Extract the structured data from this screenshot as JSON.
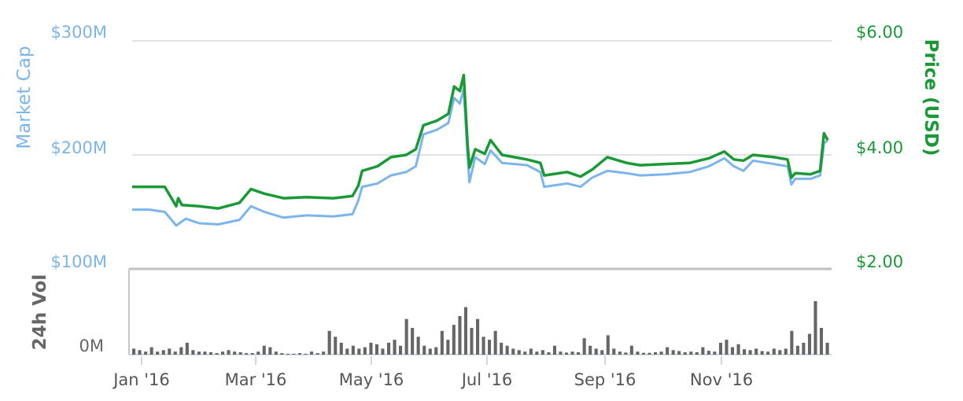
{
  "chart_data": {
    "type": "line",
    "left_axis": {
      "title": "Market Cap",
      "ticks": [
        "$100M",
        "$200M",
        "$300M"
      ],
      "range": [
        100,
        300
      ],
      "unit": "M USD"
    },
    "right_axis": {
      "title": "Price (USD)",
      "ticks": [
        "$2.00",
        "$4.00",
        "$6.00"
      ],
      "range": [
        2,
        6
      ]
    },
    "volume_axis": {
      "title": "24h Vol",
      "ticks": [
        "0M"
      ]
    },
    "x_axis": {
      "ticks": [
        "Jan '16",
        "Mar '16",
        "May '16",
        "Jul '16",
        "Sep '16",
        "Nov '16"
      ],
      "range": [
        "2016-01-01",
        "2016-12-31"
      ]
    },
    "grid": true,
    "colors": {
      "market_cap": "#7cb5ec",
      "price": "#1a9937",
      "volume": "#666666",
      "grid": "#d8d8d8",
      "volume_panel": "#c0c0c0"
    },
    "series": [
      {
        "name": "Market Cap",
        "color": "#7cb5ec",
        "points": [
          [
            "2016-01-01",
            152
          ],
          [
            "2016-01-10",
            152
          ],
          [
            "2016-01-18",
            150
          ],
          [
            "2016-01-24",
            138
          ],
          [
            "2016-01-29",
            144
          ],
          [
            "2016-02-05",
            140
          ],
          [
            "2016-02-15",
            139
          ],
          [
            "2016-02-26",
            143
          ],
          [
            "2016-03-03",
            155
          ],
          [
            "2016-03-10",
            150
          ],
          [
            "2016-03-20",
            145
          ],
          [
            "2016-04-01",
            147
          ],
          [
            "2016-04-15",
            146
          ],
          [
            "2016-04-25",
            148
          ],
          [
            "2016-04-28",
            160
          ],
          [
            "2016-04-30",
            172
          ],
          [
            "2016-05-08",
            175
          ],
          [
            "2016-05-15",
            182
          ],
          [
            "2016-05-23",
            185
          ],
          [
            "2016-05-28",
            190
          ],
          [
            "2016-06-01",
            218
          ],
          [
            "2016-06-08",
            222
          ],
          [
            "2016-06-14",
            228
          ],
          [
            "2016-06-17",
            250
          ],
          [
            "2016-06-20",
            245
          ],
          [
            "2016-06-22",
            258
          ],
          [
            "2016-06-24",
            200
          ],
          [
            "2016-06-25",
            176
          ],
          [
            "2016-06-28",
            198
          ],
          [
            "2016-07-03",
            192
          ],
          [
            "2016-07-06",
            204
          ],
          [
            "2016-07-12",
            193
          ],
          [
            "2016-07-25",
            191
          ],
          [
            "2016-08-01",
            185
          ],
          [
            "2016-08-03",
            172
          ],
          [
            "2016-08-15",
            175
          ],
          [
            "2016-08-22",
            172
          ],
          [
            "2016-08-28",
            180
          ],
          [
            "2016-09-05",
            186
          ],
          [
            "2016-09-15",
            184
          ],
          [
            "2016-09-22",
            182
          ],
          [
            "2016-10-05",
            183
          ],
          [
            "2016-10-18",
            185
          ],
          [
            "2016-10-28",
            190
          ],
          [
            "2016-11-05",
            197
          ],
          [
            "2016-11-10",
            190
          ],
          [
            "2016-11-15",
            186
          ],
          [
            "2016-11-20",
            195
          ],
          [
            "2016-12-01",
            192
          ],
          [
            "2016-12-08",
            190
          ],
          [
            "2016-12-10",
            174
          ],
          [
            "2016-12-12",
            179
          ],
          [
            "2016-12-20",
            179
          ],
          [
            "2016-12-25",
            182
          ],
          [
            "2016-12-27",
            210
          ],
          [
            "2016-12-29",
            213
          ]
        ]
      },
      {
        "name": "Price (USD)",
        "color": "#1a9937",
        "points": [
          [
            "2016-01-01",
            3.44
          ],
          [
            "2016-01-10",
            3.44
          ],
          [
            "2016-01-18",
            3.44
          ],
          [
            "2016-01-24",
            3.1
          ],
          [
            "2016-01-25",
            3.24
          ],
          [
            "2016-01-27",
            3.12
          ],
          [
            "2016-02-05",
            3.1
          ],
          [
            "2016-02-15",
            3.06
          ],
          [
            "2016-02-26",
            3.16
          ],
          [
            "2016-03-03",
            3.4
          ],
          [
            "2016-03-10",
            3.32
          ],
          [
            "2016-03-20",
            3.24
          ],
          [
            "2016-04-01",
            3.26
          ],
          [
            "2016-04-15",
            3.24
          ],
          [
            "2016-04-25",
            3.28
          ],
          [
            "2016-04-28",
            3.46
          ],
          [
            "2016-04-30",
            3.72
          ],
          [
            "2016-05-08",
            3.8
          ],
          [
            "2016-05-15",
            3.96
          ],
          [
            "2016-05-23",
            4.0
          ],
          [
            "2016-05-28",
            4.1
          ],
          [
            "2016-06-01",
            4.52
          ],
          [
            "2016-06-08",
            4.6
          ],
          [
            "2016-06-14",
            4.72
          ],
          [
            "2016-06-17",
            5.2
          ],
          [
            "2016-06-20",
            5.12
          ],
          [
            "2016-06-22",
            5.4
          ],
          [
            "2016-06-24",
            4.2
          ],
          [
            "2016-06-25",
            3.78
          ],
          [
            "2016-06-28",
            4.1
          ],
          [
            "2016-07-03",
            4.02
          ],
          [
            "2016-07-06",
            4.26
          ],
          [
            "2016-07-12",
            4.0
          ],
          [
            "2016-07-25",
            3.92
          ],
          [
            "2016-08-01",
            3.86
          ],
          [
            "2016-08-03",
            3.64
          ],
          [
            "2016-08-15",
            3.7
          ],
          [
            "2016-08-22",
            3.62
          ],
          [
            "2016-08-28",
            3.74
          ],
          [
            "2016-09-05",
            3.96
          ],
          [
            "2016-09-15",
            3.86
          ],
          [
            "2016-09-22",
            3.82
          ],
          [
            "2016-10-05",
            3.84
          ],
          [
            "2016-10-18",
            3.86
          ],
          [
            "2016-10-28",
            3.94
          ],
          [
            "2016-11-05",
            4.06
          ],
          [
            "2016-11-10",
            3.92
          ],
          [
            "2016-11-15",
            3.9
          ],
          [
            "2016-11-20",
            4.0
          ],
          [
            "2016-12-01",
            3.96
          ],
          [
            "2016-12-08",
            3.92
          ],
          [
            "2016-12-10",
            3.6
          ],
          [
            "2016-12-12",
            3.68
          ],
          [
            "2016-12-20",
            3.66
          ],
          [
            "2016-12-25",
            3.72
          ],
          [
            "2016-12-27",
            4.38
          ],
          [
            "2016-12-29",
            4.26
          ]
        ]
      },
      {
        "name": "24h Vol",
        "color": "#666666",
        "values_relative": [
          2,
          1.5,
          1,
          2.5,
          1,
          1.5,
          2,
          1,
          2.5,
          4,
          1.5,
          1,
          1,
          0.8,
          0.5,
          1,
          1.5,
          1,
          0.8,
          0.5,
          0.5,
          1,
          3,
          2.5,
          1,
          0.5,
          0.3,
          0.3,
          0.5,
          0.3,
          1,
          0.5,
          1,
          8,
          6,
          4,
          2,
          3,
          2,
          2.5,
          4,
          3.5,
          2,
          4,
          5,
          3,
          12,
          9,
          6,
          3,
          2,
          2.5,
          8,
          5,
          10,
          13,
          16,
          9,
          12,
          6,
          5,
          8,
          4,
          3,
          2,
          1.5,
          1,
          2,
          1,
          1.5,
          0.8,
          3,
          1,
          0.7,
          1,
          0.8,
          5.5,
          3,
          2,
          1.5,
          6.5,
          2,
          1,
          0.7,
          3,
          1,
          0.6,
          0.6,
          0.8,
          1,
          2.5,
          1.5,
          1.2,
          0.8,
          1,
          0.8,
          2.5,
          1.3,
          1,
          4,
          5,
          2.5,
          3.5,
          1.8,
          1.5,
          2,
          1.2,
          1,
          2,
          1.5,
          2,
          8,
          3,
          4,
          7,
          18,
          9,
          4
        ]
      }
    ]
  }
}
